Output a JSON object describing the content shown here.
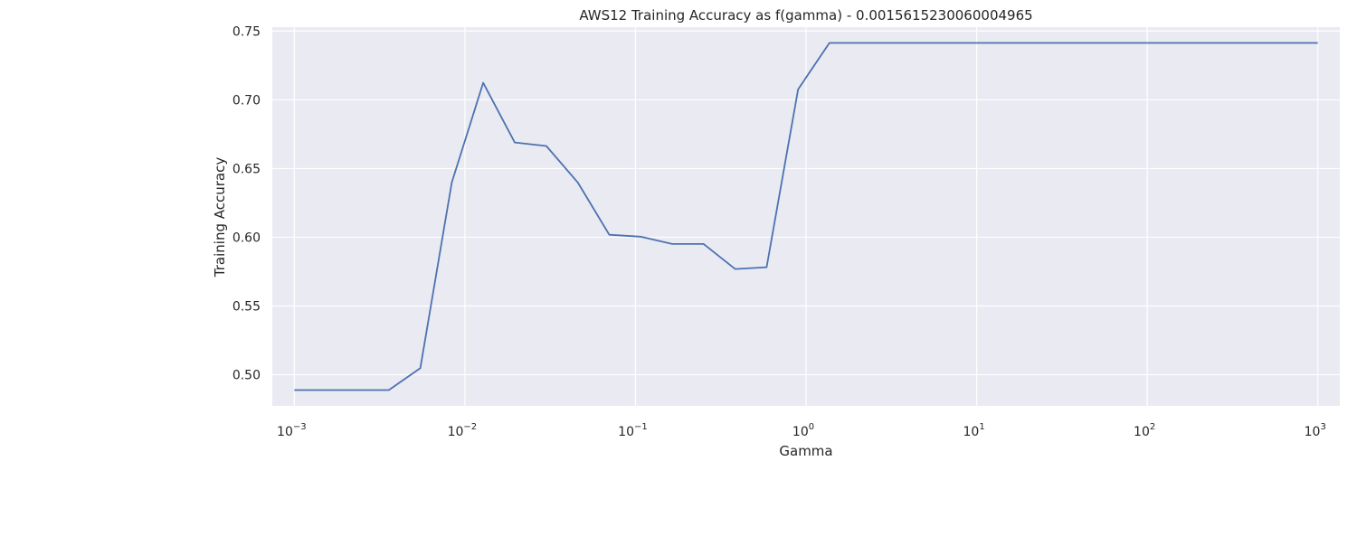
{
  "chart_data": {
    "type": "line",
    "title": "AWS12 Training Accuracy as f(gamma) - 0.0015615230060004965",
    "xlabel": "Gamma",
    "ylabel": "Training Accuracy",
    "x_scale": "log",
    "x_tick_values": [
      0.001,
      0.01,
      0.1,
      1,
      10,
      100,
      1000
    ],
    "x_tick_exponents": [
      "−3",
      "−2",
      "−1",
      "0",
      "1",
      "2",
      "3"
    ],
    "x_tick_base": "10",
    "y_ticks": [
      "0.50",
      "0.55",
      "0.60",
      "0.65",
      "0.70",
      "0.75"
    ],
    "y_tick_values": [
      0.5,
      0.55,
      0.6,
      0.65,
      0.7,
      0.75
    ],
    "grid": true,
    "background": "#eaeaf2",
    "line_color": "#4c72b0",
    "series": [
      {
        "x": [
          0.001,
          0.00153,
          0.00234,
          0.00358,
          0.00548,
          0.00838,
          0.0128,
          0.0196,
          0.03,
          0.0459,
          0.0702,
          0.107,
          0.164,
          0.251,
          0.384,
          0.587,
          0.898,
          1.37,
          2.1,
          3.21,
          4.91,
          7.52,
          11.5,
          17.6,
          26.9,
          41.2,
          63,
          96.4,
          147,
          225,
          345,
          527,
          807,
          1000
        ],
        "y": [
          0.4888,
          0.4888,
          0.4888,
          0.4888,
          0.5047,
          0.6398,
          0.7124,
          0.669,
          0.6664,
          0.6398,
          0.6018,
          0.6004,
          0.5951,
          0.5951,
          0.5769,
          0.5782,
          0.7076,
          0.7414,
          0.7414,
          0.7414,
          0.7414,
          0.7414,
          0.7414,
          0.7414,
          0.7414,
          0.7414,
          0.7414,
          0.7414,
          0.7414,
          0.7414,
          0.7414,
          0.7414,
          0.7414,
          0.7414
        ]
      }
    ]
  }
}
